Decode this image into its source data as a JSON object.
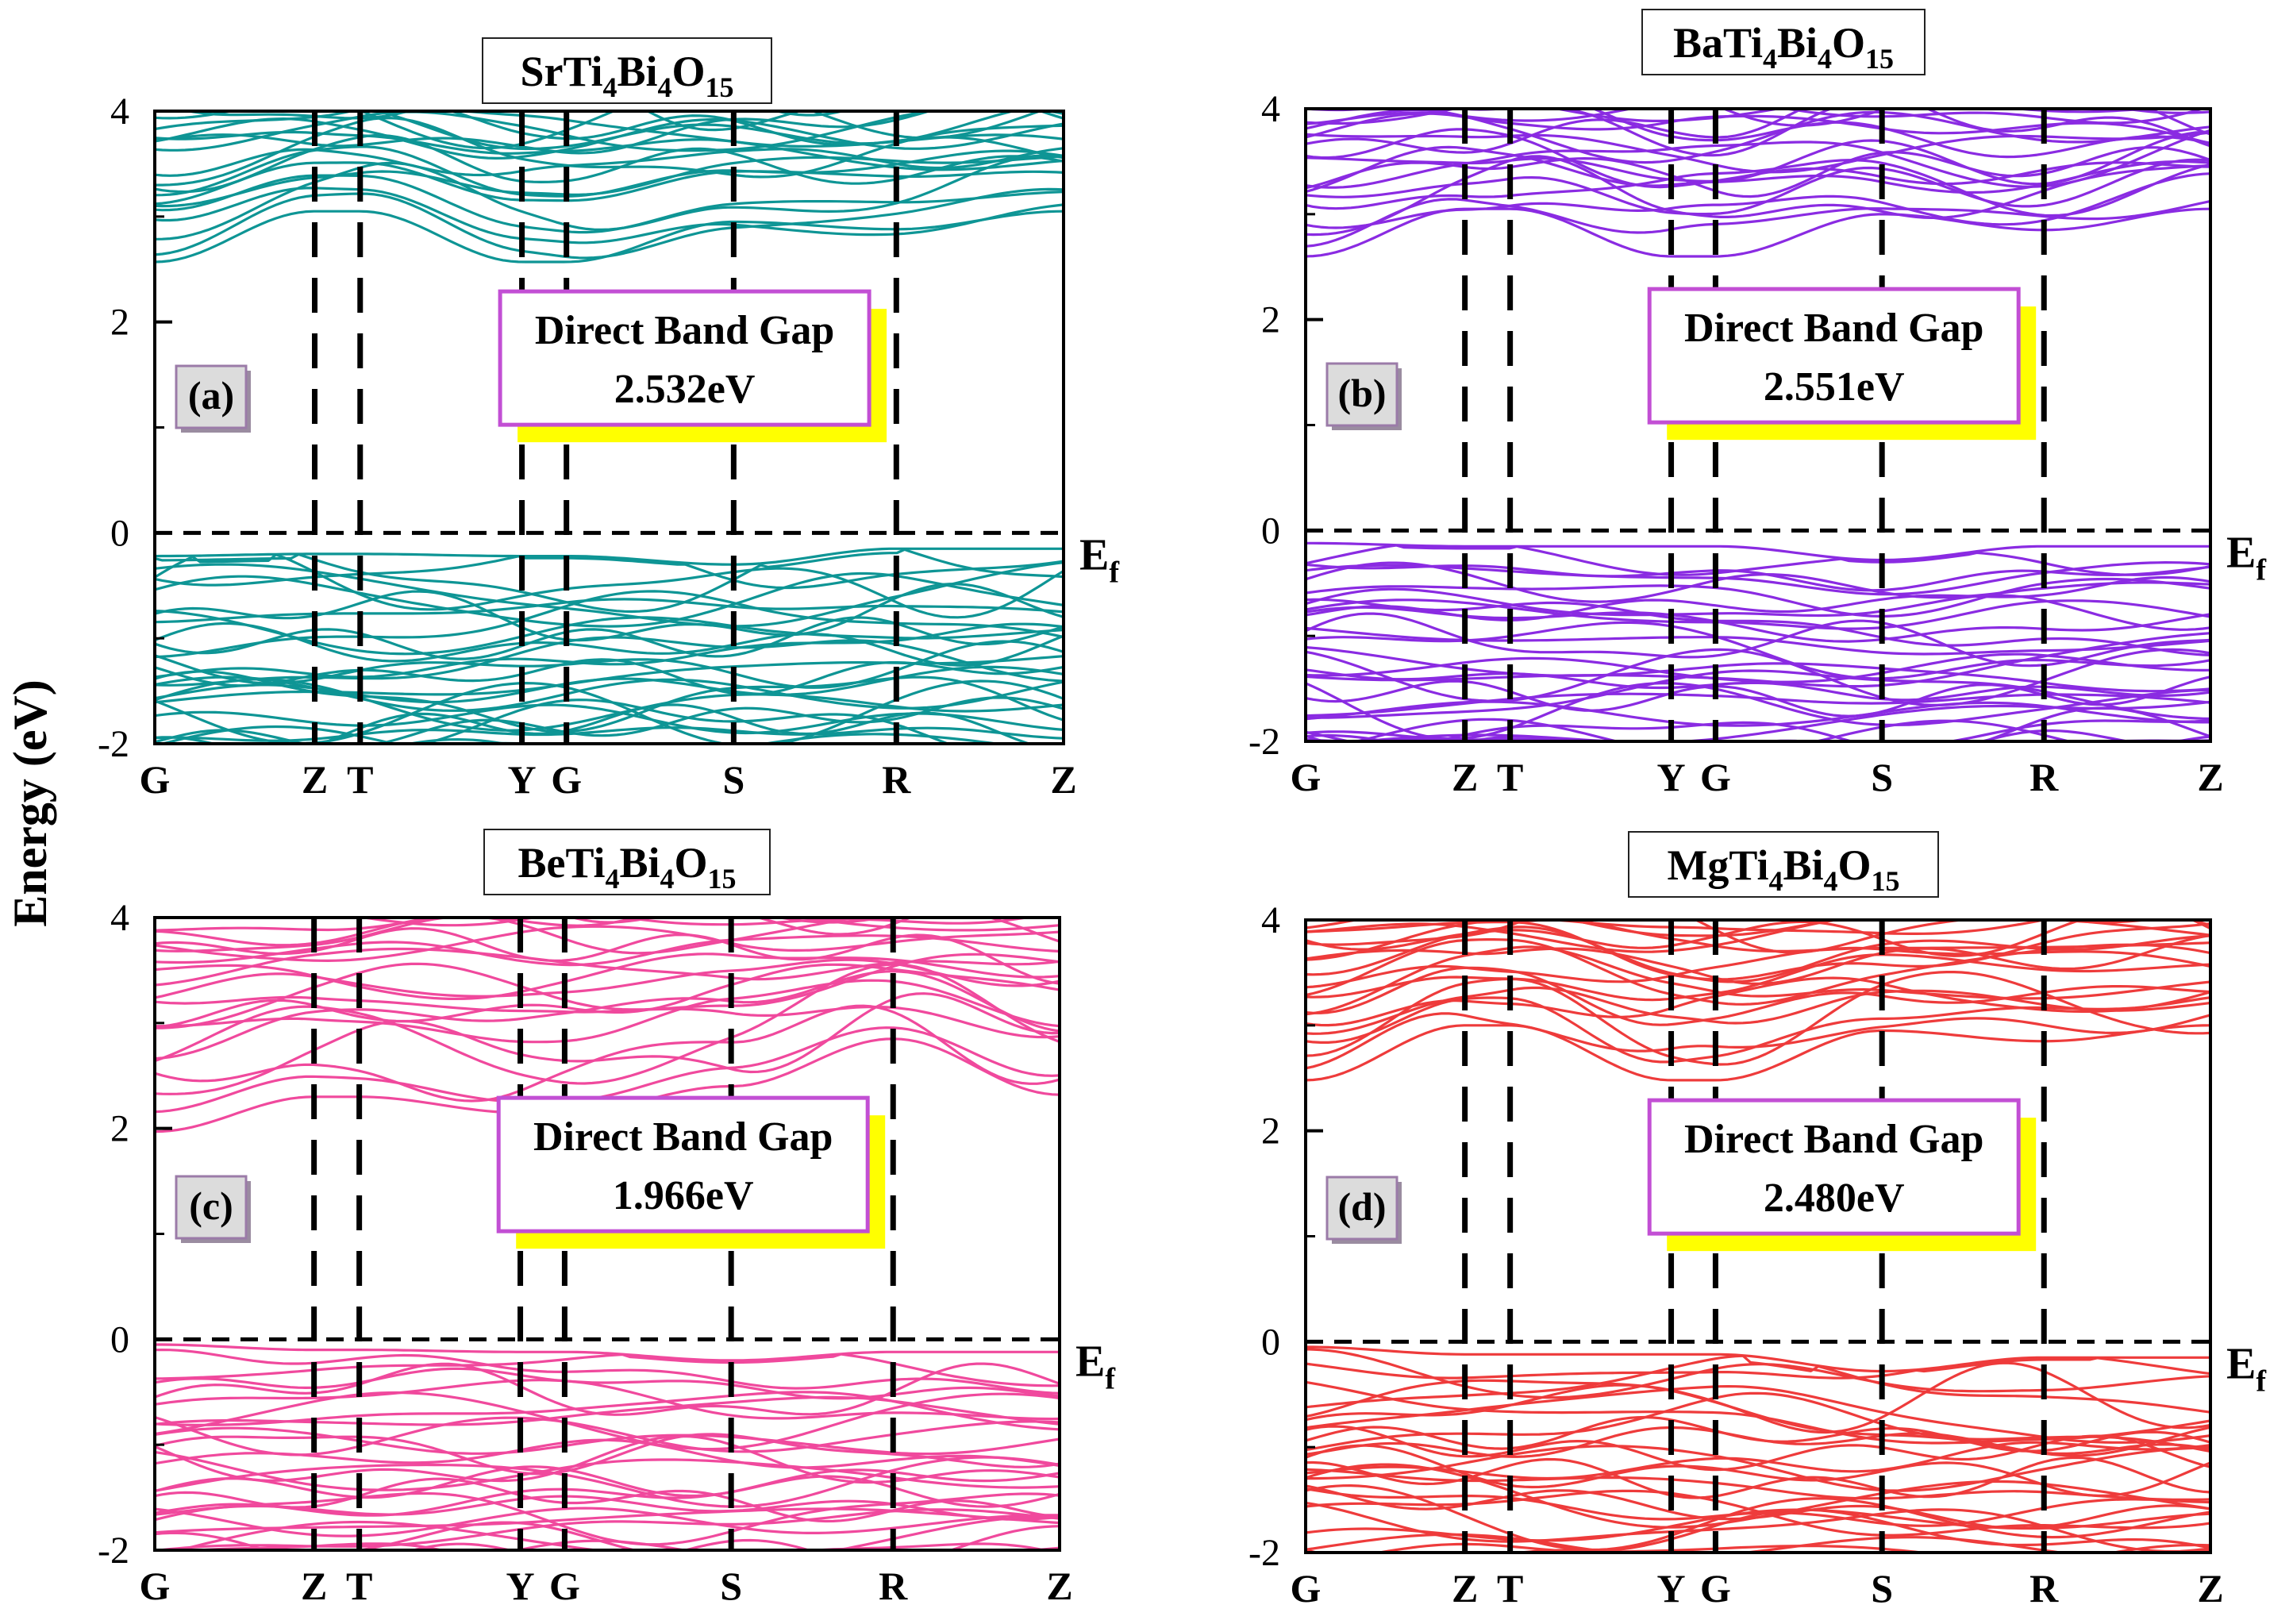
{
  "figure": {
    "ylabel": "Energy (eV)",
    "fermi_label": "E",
    "fermi_sub": "f",
    "box_heading": "Direct Band Gap"
  },
  "chart_data": [
    {
      "type": "line",
      "panel": "(a)",
      "title": {
        "base": "SrTi",
        "s1": "4",
        "mid": "Bi",
        "s2": "4",
        "end": "O",
        "s3": "15"
      },
      "color": "#0E9595",
      "ylim": [
        -2,
        4
      ],
      "yticks": [
        "-2",
        "0",
        "2",
        "4"
      ],
      "kpath": [
        "G",
        "Z",
        "T",
        "Y",
        "G",
        "S",
        "R",
        "Z"
      ],
      "kpos": [
        0,
        0.176,
        0.226,
        0.404,
        0.453,
        0.637,
        0.816,
        1.0
      ],
      "band_gap": "2.532eV",
      "vbm": -0.2,
      "cbm_at_G": 2.57,
      "cb_min_curve": [
        2.57,
        3.05,
        3.05,
        2.57,
        2.57,
        2.95,
        2.88,
        3.05
      ],
      "vb_max_curve": [
        -0.22,
        -0.2,
        -0.2,
        -0.22,
        -0.22,
        -0.3,
        -0.15,
        -0.15
      ],
      "n_bands": 56
    },
    {
      "type": "line",
      "panel": "(b)",
      "title": {
        "base": "BaTi",
        "s1": "4",
        "mid": "Bi",
        "s2": "4",
        "end": "O",
        "s3": "15"
      },
      "color": "#8A2BE2",
      "ylim": [
        -2,
        4
      ],
      "yticks": [
        "-2",
        "0",
        "2",
        "4"
      ],
      "kpath": [
        "G",
        "Z",
        "T",
        "Y",
        "G",
        "S",
        "R",
        "Z"
      ],
      "kpos": [
        0,
        0.176,
        0.226,
        0.404,
        0.453,
        0.637,
        0.816,
        1.0
      ],
      "band_gap": "2.551eV",
      "vbm": -0.12,
      "cbm_at_G": 2.6,
      "cb_min_curve": [
        2.6,
        3.05,
        3.05,
        2.6,
        2.6,
        3.0,
        2.85,
        3.05
      ],
      "vb_max_curve": [
        -0.12,
        -0.15,
        -0.15,
        -0.15,
        -0.15,
        -0.28,
        -0.15,
        -0.15
      ],
      "n_bands": 58
    },
    {
      "type": "line",
      "panel": "(c)",
      "title": {
        "base": "BeTi",
        "s1": "4",
        "mid": "Bi",
        "s2": "4",
        "end": "O",
        "s3": "15"
      },
      "color": "#F0499D",
      "ylim": [
        -2,
        4
      ],
      "yticks": [
        "-2",
        "0",
        "2",
        "4"
      ],
      "kpath": [
        "G",
        "Z",
        "T",
        "Y",
        "G",
        "S",
        "R",
        "Z"
      ],
      "kpos": [
        0,
        0.176,
        0.226,
        0.404,
        0.453,
        0.637,
        0.816,
        1.0
      ],
      "band_gap": "1.966eV",
      "vbm": -0.05,
      "cbm_at_G": 1.97,
      "cb_min_curve": [
        1.97,
        2.3,
        2.3,
        2.15,
        2.15,
        2.4,
        2.85,
        2.32
      ],
      "vb_max_curve": [
        -0.05,
        -0.1,
        -0.1,
        -0.12,
        -0.12,
        -0.2,
        -0.12,
        -0.12
      ],
      "n_bands": 54
    },
    {
      "type": "line",
      "panel": "(d)",
      "title": {
        "base": "MgTi",
        "s1": "4",
        "mid": "Bi",
        "s2": "4",
        "end": "O",
        "s3": "15"
      },
      "color": "#EE3B3B",
      "ylim": [
        -2,
        4
      ],
      "yticks": [
        "-2",
        "0",
        "2",
        "4"
      ],
      "kpath": [
        "G",
        "Z",
        "T",
        "Y",
        "G",
        "S",
        "R",
        "Z"
      ],
      "kpos": [
        0,
        0.176,
        0.226,
        0.404,
        0.453,
        0.637,
        0.816,
        1.0
      ],
      "band_gap": "2.480eV",
      "vbm": -0.05,
      "cbm_at_G": 2.48,
      "cb_min_curve": [
        2.48,
        3.0,
        3.0,
        2.48,
        2.48,
        2.95,
        2.85,
        3.0
      ],
      "vb_max_curve": [
        -0.05,
        -0.12,
        -0.12,
        -0.12,
        -0.12,
        -0.28,
        -0.15,
        -0.15
      ],
      "n_bands": 56
    }
  ]
}
